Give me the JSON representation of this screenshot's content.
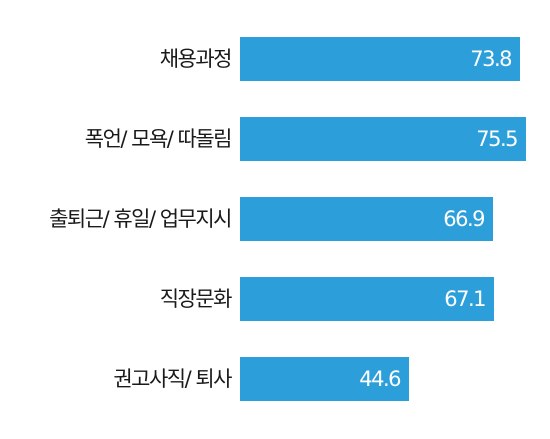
{
  "chart_data": {
    "type": "bar",
    "orientation": "horizontal",
    "categories": [
      "채용과정",
      "폭언/ 모욕/ 따돌림",
      "출퇴근/ 휴일/ 업무지시",
      "직장문화",
      "권고사직/ 퇴사"
    ],
    "values": [
      73.8,
      75.5,
      66.9,
      67.1,
      44.6
    ],
    "value_labels": [
      "73.8",
      "75.5",
      "66.9",
      "67.1",
      "44.6"
    ],
    "bar_color": "#2c9fdb",
    "xlim": [
      0,
      75.5
    ],
    "grid": false,
    "legend": "none"
  }
}
